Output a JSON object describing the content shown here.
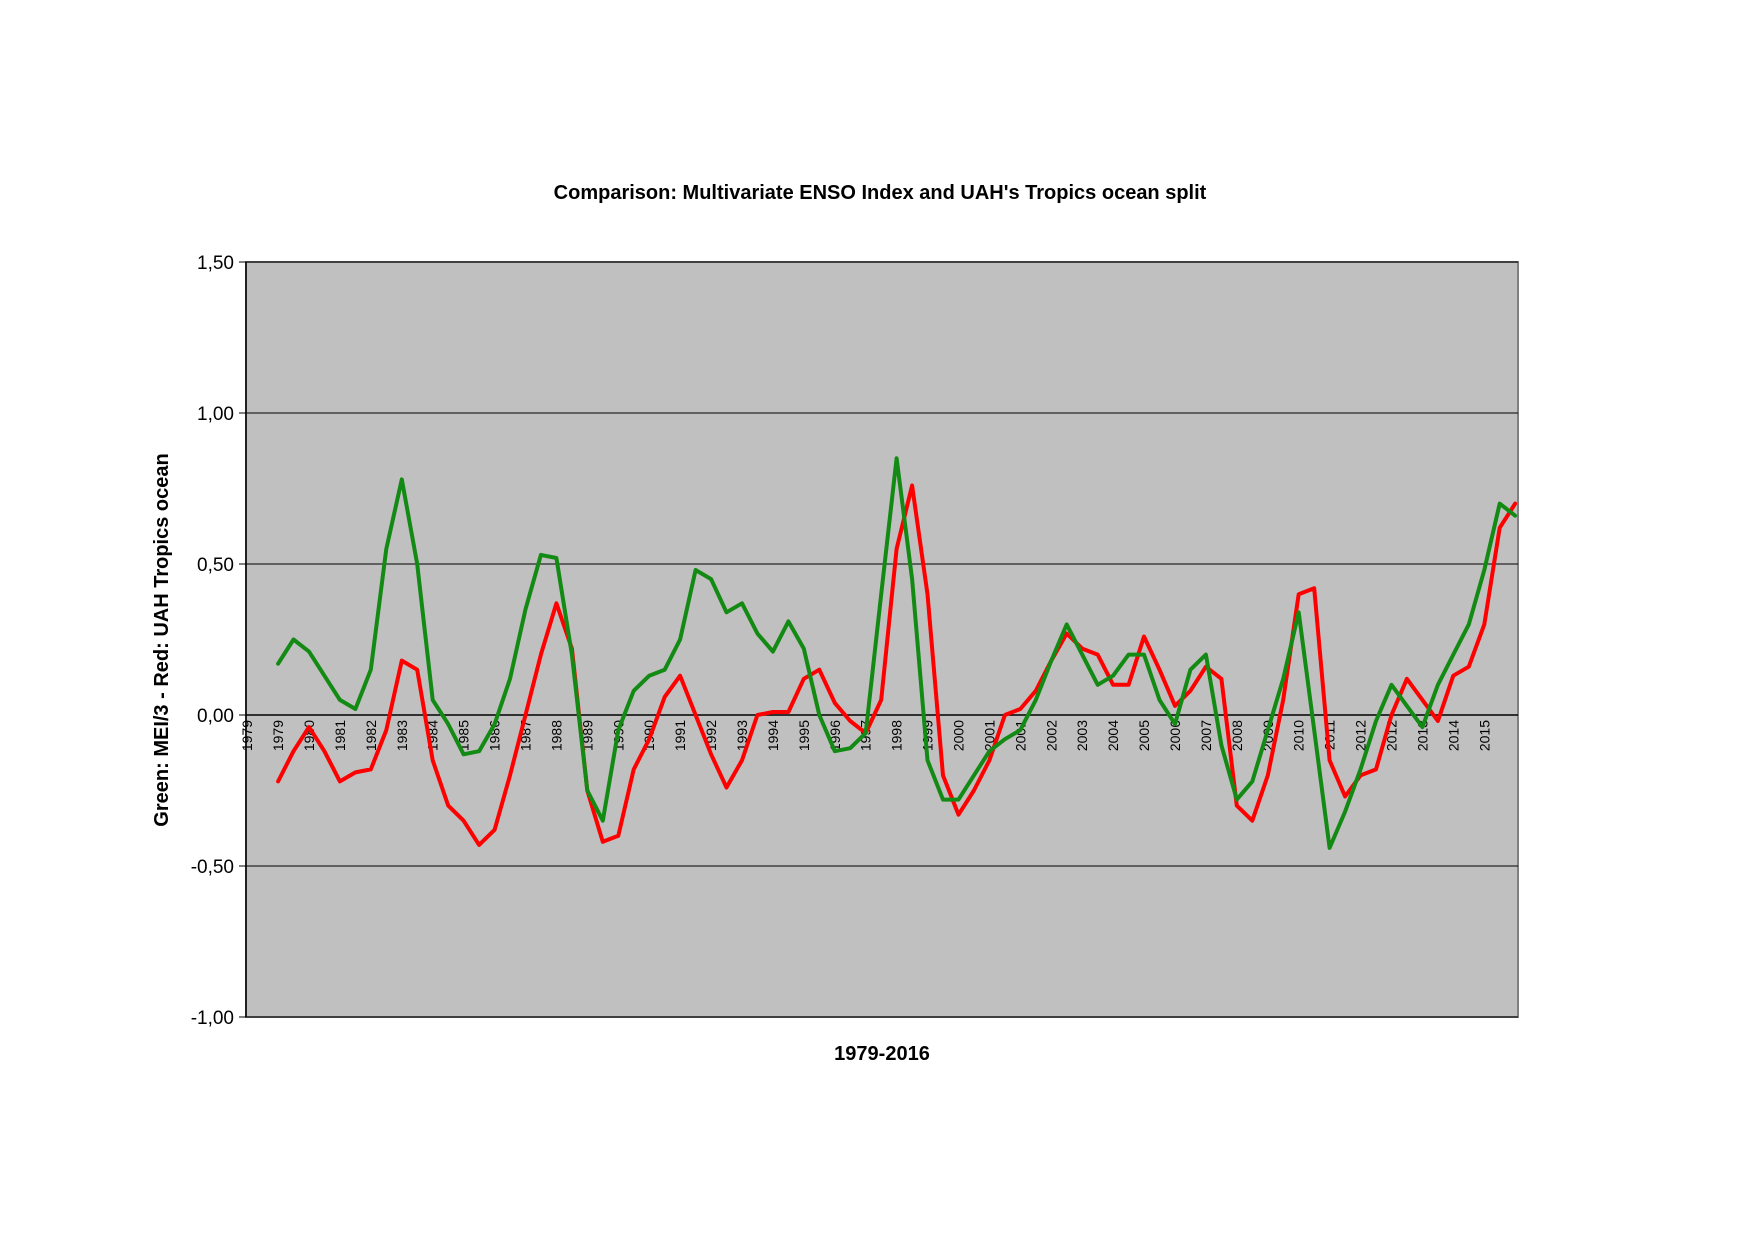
{
  "chart_data": {
    "type": "line",
    "title": "Comparison: Multivariate ENSO Index and UAH's Tropics ocean split",
    "x_label": "1979-2016",
    "y_label": "Green: MEI/3 - Red: UAH Tropics ocean",
    "categories": [
      "1979",
      null,
      "1979",
      null,
      "1980",
      null,
      "1981",
      null,
      "1982",
      null,
      "1983",
      null,
      "1984",
      null,
      "1985",
      null,
      "1986",
      null,
      "1987",
      null,
      "1988",
      null,
      "1989",
      null,
      "1990",
      null,
      "1990",
      null,
      "1991",
      null,
      "1992",
      null,
      "1993",
      null,
      "1994",
      null,
      "1995",
      null,
      "1996",
      null,
      "1997",
      null,
      "1998",
      null,
      "1999",
      null,
      "2000",
      null,
      "2001",
      null,
      "2001",
      null,
      "2002",
      null,
      "2003",
      null,
      "2004",
      null,
      "2005",
      null,
      "2006",
      null,
      "2007",
      null,
      "2008",
      null,
      "2009",
      null,
      "2010",
      null,
      "2011",
      null,
      "2012",
      null,
      "2012",
      null,
      "2013",
      null,
      "2014",
      null,
      "2015",
      null,
      null
    ],
    "series": [
      {
        "color": "#ff0000",
        "values": [
          null,
          null,
          -0.22,
          -0.12,
          -0.04,
          -0.12,
          -0.22,
          -0.19,
          -0.18,
          -0.05,
          0.18,
          0.15,
          -0.15,
          -0.3,
          -0.35,
          -0.43,
          -0.38,
          -0.2,
          0.0,
          0.2,
          0.37,
          0.22,
          -0.25,
          -0.42,
          -0.4,
          -0.18,
          -0.08,
          0.06,
          0.13,
          0.0,
          -0.13,
          -0.24,
          -0.15,
          0.0,
          0.01,
          0.01,
          0.12,
          0.15,
          0.04,
          -0.02,
          -0.06,
          0.05,
          0.55,
          0.76,
          0.4,
          -0.2,
          -0.33,
          -0.25,
          -0.15,
          0.0,
          0.02,
          0.08,
          0.18,
          0.27,
          0.22,
          0.2,
          0.1,
          0.1,
          0.26,
          0.15,
          0.03,
          0.08,
          0.16,
          0.12,
          -0.3,
          -0.35,
          -0.2,
          0.05,
          0.4,
          0.42,
          -0.15,
          -0.27,
          -0.2,
          -0.18,
          0.0,
          0.12,
          0.05,
          -0.02,
          0.13,
          0.16,
          0.3,
          0.62,
          0.7
        ]
      },
      {
        "color": "#138a13",
        "values": [
          null,
          null,
          0.17,
          0.25,
          0.21,
          0.13,
          0.05,
          0.02,
          0.15,
          0.55,
          0.78,
          0.5,
          0.05,
          -0.03,
          -0.13,
          -0.12,
          -0.03,
          0.12,
          0.35,
          0.53,
          0.52,
          0.2,
          -0.25,
          -0.35,
          -0.05,
          0.08,
          0.13,
          0.15,
          0.25,
          0.48,
          0.45,
          0.34,
          0.37,
          0.27,
          0.21,
          0.31,
          0.22,
          0.0,
          -0.12,
          -0.11,
          -0.06,
          0.4,
          0.85,
          0.45,
          -0.15,
          -0.28,
          -0.28,
          -0.2,
          -0.12,
          -0.08,
          -0.05,
          0.05,
          0.18,
          0.3,
          0.2,
          0.1,
          0.13,
          0.2,
          0.2,
          0.05,
          -0.03,
          0.15,
          0.2,
          -0.1,
          -0.28,
          -0.22,
          -0.05,
          0.12,
          0.34,
          -0.05,
          -0.44,
          -0.32,
          -0.18,
          -0.02,
          0.1,
          0.03,
          -0.04,
          0.1,
          0.2,
          0.3,
          0.48,
          0.7,
          0.66
        ]
      }
    ],
    "ylim": [
      -1,
      1.5
    ],
    "yticks": [
      {
        "value": -1,
        "label": "-1,00"
      },
      {
        "value": -0.5,
        "label": "-0,50"
      },
      {
        "value": 0,
        "label": "0,00"
      },
      {
        "value": 0.5,
        "label": "0,50"
      },
      {
        "value": 1,
        "label": "1,00"
      },
      {
        "value": 1.5,
        "label": "1,50"
      }
    ],
    "grid": true,
    "plot_background": "#c0c0c0"
  }
}
